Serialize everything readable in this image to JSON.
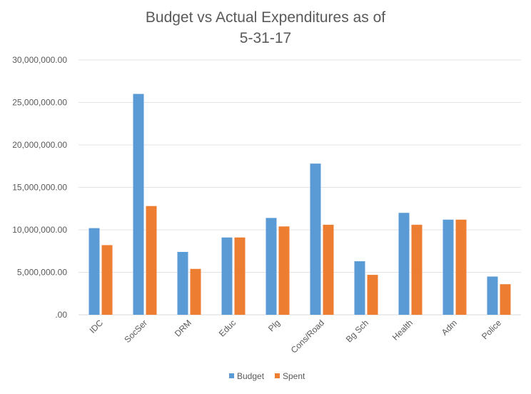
{
  "chart_data": {
    "type": "bar",
    "title_line1": "Budget vs Actual Expenditures as of",
    "title_line2": "5-31-17",
    "xlabel": "",
    "ylabel": "",
    "categories": [
      "IDC",
      "SocSer",
      "DRM",
      "Educ",
      "Plg",
      "Cons/Road",
      "Bg Sch",
      "Health",
      "Adm",
      "Police"
    ],
    "series": [
      {
        "name": "Budget",
        "color": "#5B9BD5",
        "values": [
          10200000,
          26000000,
          7400000,
          9100000,
          11400000,
          17800000,
          6300000,
          12000000,
          11200000,
          4500000
        ]
      },
      {
        "name": "Spent",
        "color": "#ED7D31",
        "values": [
          8200000,
          12800000,
          5400000,
          9100000,
          10400000,
          10600000,
          4700000,
          10600000,
          11200000,
          3600000
        ]
      }
    ],
    "ylim": [
      0,
      30000000
    ],
    "yticks": [
      0,
      5000000,
      10000000,
      15000000,
      20000000,
      25000000,
      30000000
    ],
    "ytick_labels": [
      ".00",
      "5,000,000.00",
      "10,000,000.00",
      "15,000,000.00",
      "20,000,000.00",
      "25,000,000.00",
      "30,000,000.00"
    ],
    "grid": true,
    "legend_position": "bottom"
  }
}
